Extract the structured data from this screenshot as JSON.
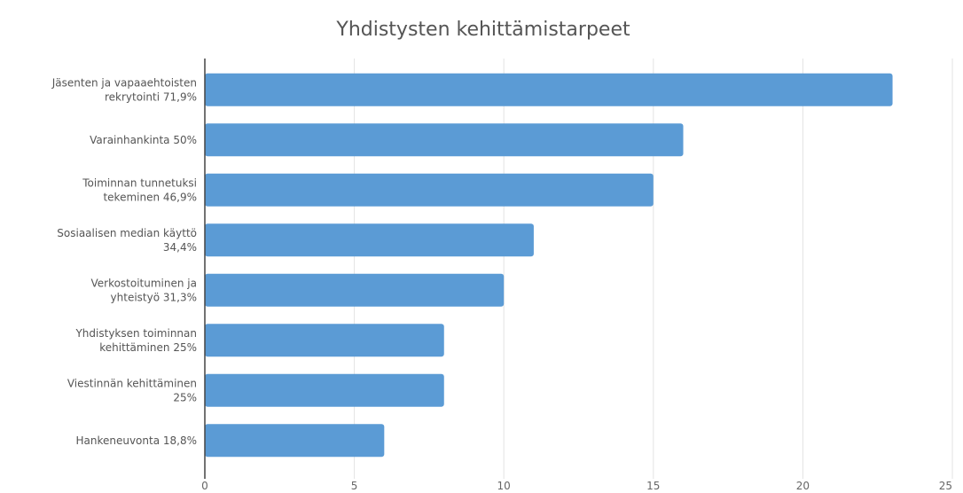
{
  "chart_data": {
    "type": "bar",
    "orientation": "horizontal",
    "title": "Yhdistysten kehittämistarpeet",
    "xlabel": "",
    "ylabel": "",
    "categories": [
      [
        "Jäsenten ja vapaaehtoisten",
        "rekrytointi 71,9%"
      ],
      [
        "Varainhankinta 50%"
      ],
      [
        "Toiminnan tunnetuksi",
        "tekeminen 46,9%"
      ],
      [
        "Sosiaalisen median käyttö",
        "34,4%"
      ],
      [
        "Verkostoituminen ja",
        "yhteistyö 31,3%"
      ],
      [
        "Yhdistyksen toiminnan",
        "kehittäminen 25%"
      ],
      [
        "Viestinnän kehittäminen",
        "25%"
      ],
      [
        "Hankeneuvonta 18,8%"
      ]
    ],
    "values": [
      23,
      16,
      15,
      11,
      10,
      8,
      8,
      6
    ],
    "xlim": [
      0,
      25
    ],
    "xticks": [
      "0",
      "5",
      "10",
      "15",
      "20",
      "25"
    ],
    "grid": true,
    "legend": "none",
    "bar_color": "#5b9bd5"
  }
}
